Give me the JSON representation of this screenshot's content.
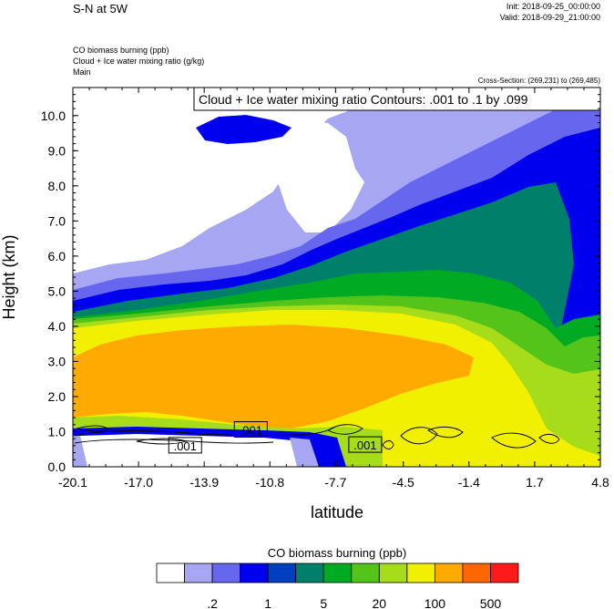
{
  "header": {
    "title": "S-N at 5W",
    "init": "Init: 2018-09-25_00:00:00",
    "valid": "Valid: 2018-09-29_21:00:00",
    "fields": [
      "CO biomass burning   (ppb)",
      "Cloud + Ice water mixing ratio   (g/kg)",
      "Main"
    ],
    "cross_section": "Cross-Section: (269,231) to (269,485)"
  },
  "chart_data": {
    "type": "heatmap",
    "xlabel": "latitude",
    "ylabel": "Height (km)",
    "xlim": [
      -20.1,
      4.8
    ],
    "ylim": [
      0.0,
      10.8
    ],
    "xticks": [
      "-20.1",
      "-17.0",
      "-13.9",
      "-10.8",
      "-7.7",
      "-4.5",
      "-1.4",
      "1.7",
      "4.8"
    ],
    "xtick_values": [
      -20.1,
      -17.0,
      -13.9,
      -10.8,
      -7.7,
      -4.5,
      -1.4,
      1.7,
      4.8
    ],
    "yticks": [
      "0.0",
      "1.0",
      "2.0",
      "3.0",
      "4.0",
      "5.0",
      "6.0",
      "7.0",
      "8.0",
      "9.0",
      "10.0"
    ],
    "ytick_values": [
      0,
      1,
      2,
      3,
      4,
      5,
      6,
      7,
      8,
      9,
      10
    ],
    "contour_title": "Cloud + Ice water mixing ratio Contours: .001 to .1 by .099",
    "contour_labels": [
      {
        "text": ".001",
        "x": -14.8,
        "y": 0.6
      },
      {
        "text": ".001",
        "x": -11.7,
        "y": 1.05
      },
      {
        "text": ".001",
        "x": -6.3,
        "y": 0.62
      }
    ],
    "colorbar": {
      "title": "CO biomass burning  (ppb)",
      "colors": [
        "#ffffff",
        "#a6a6f2",
        "#6666ee",
        "#0000ee",
        "#0040c0",
        "#00806a",
        "#00aa22",
        "#55c41a",
        "#a6dc1a",
        "#f0f000",
        "#ffaa00",
        "#ff6600",
        "#ff1a1a"
      ],
      "tick_labels": [
        ".2",
        "1",
        "5",
        "20",
        "100",
        "500"
      ]
    }
  }
}
